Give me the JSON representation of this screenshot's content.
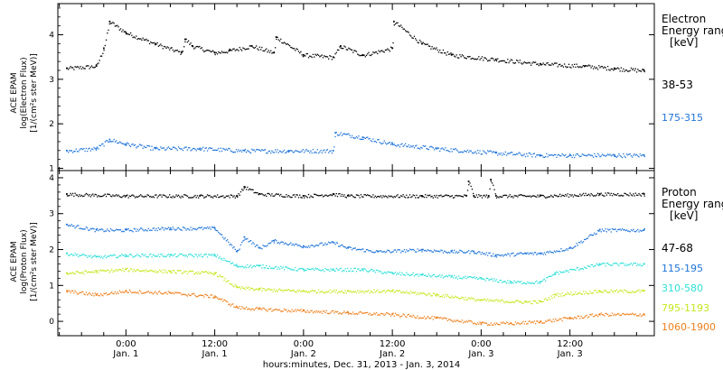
{
  "panels": [
    {
      "ylabel": [
        "ACE EPAM",
        "log(Electron Flux)",
        "[1/(cm²s ster MeV)]"
      ],
      "legend_title": [
        "Electron",
        "Energy range",
        "[keV]"
      ],
      "yticks": [
        "1",
        "2",
        "3",
        "4"
      ]
    },
    {
      "ylabel": [
        "ACE EPAM",
        "log(Proton Flux)",
        "[1/(cm²s ster MeV)]"
      ],
      "legend_title": [
        "Proton",
        "Energy range",
        "[keV]"
      ],
      "yticks": [
        "0",
        "1",
        "2",
        "3",
        "4"
      ]
    }
  ],
  "x_axis": {
    "tick_labels": [
      {
        "time": "0:00",
        "day": "Jan. 1"
      },
      {
        "time": "12:00",
        "day": "Jan. 1"
      },
      {
        "time": "0:00",
        "day": "Jan. 2"
      },
      {
        "time": "12:00",
        "day": "Jan. 2"
      },
      {
        "time": "0:00",
        "day": "Jan. 3"
      },
      {
        "time": "12:00",
        "day": "Jan. 3"
      }
    ],
    "label": "hours:minutes, Dec. 31, 2013 - Jan.  3, 2014"
  },
  "chart_data": [
    {
      "type": "scatter",
      "x_unit": "hours after 2014-01-01 00:00 UT",
      "xlim": [
        -9.2,
        71.4
      ],
      "ylim": [
        0.95,
        4.7
      ],
      "series": [
        {
          "name": "38-53",
          "color": "#000000",
          "x": [
            -8,
            -4,
            -3,
            -2.2,
            0,
            4,
            7.5,
            8,
            9,
            12,
            14,
            17,
            20,
            20.3,
            24,
            28,
            29,
            32,
            36,
            36.2,
            40,
            44,
            50,
            56,
            62,
            66,
            70
          ],
          "y": [
            3.25,
            3.3,
            3.7,
            4.3,
            4.05,
            3.8,
            3.6,
            3.9,
            3.75,
            3.6,
            3.65,
            3.75,
            3.6,
            3.95,
            3.55,
            3.5,
            3.75,
            3.55,
            3.7,
            4.3,
            3.8,
            3.55,
            3.45,
            3.35,
            3.3,
            3.25,
            3.2
          ]
        },
        {
          "name": "175-315",
          "color": "#1f74d9",
          "x": [
            -8,
            -4,
            -2.2,
            0,
            4,
            10,
            16,
            22,
            28,
            28.3,
            32,
            36,
            42,
            50,
            56,
            60,
            66,
            70
          ],
          "y": [
            1.4,
            1.45,
            1.65,
            1.55,
            1.45,
            1.45,
            1.4,
            1.4,
            1.4,
            1.8,
            1.7,
            1.55,
            1.45,
            1.35,
            1.3,
            1.3,
            1.3,
            1.3
          ]
        }
      ]
    },
    {
      "type": "scatter",
      "x_unit": "hours after 2014-01-01 00:00 UT",
      "xlim": [
        -9.2,
        71.4
      ],
      "ylim": [
        -0.4,
        4.2
      ],
      "series": [
        {
          "name": "47-68",
          "color": "#000000",
          "x": [
            -8,
            0,
            10,
            15,
            16,
            18,
            24,
            28,
            30,
            40,
            46,
            46.3,
            47,
            49,
            49.3,
            50,
            56,
            64,
            70
          ],
          "y": [
            3.55,
            3.5,
            3.5,
            3.5,
            3.75,
            3.55,
            3.5,
            3.55,
            3.5,
            3.5,
            3.5,
            3.9,
            3.5,
            3.5,
            3.95,
            3.5,
            3.5,
            3.55,
            3.55
          ]
        },
        {
          "name": "115-195",
          "color": "#1f74d9",
          "x": [
            -8,
            -4,
            0,
            6,
            12,
            15,
            16,
            18,
            20,
            24,
            28,
            30,
            34,
            40,
            44,
            47,
            50,
            54,
            56,
            60,
            64,
            70
          ],
          "y": [
            2.7,
            2.55,
            2.55,
            2.6,
            2.6,
            1.95,
            2.35,
            2.05,
            2.25,
            2.1,
            2.2,
            2.05,
            1.95,
            2.0,
            1.95,
            1.95,
            1.85,
            1.9,
            1.9,
            2.05,
            2.55,
            2.55
          ]
        },
        {
          "name": "310-580",
          "color": "#2ee0d8",
          "x": [
            -8,
            -4,
            0,
            6,
            12,
            15,
            18,
            24,
            28,
            32,
            36,
            40,
            44,
            48,
            52,
            56,
            58,
            64,
            70
          ],
          "y": [
            1.9,
            1.8,
            1.85,
            1.85,
            1.85,
            1.55,
            1.55,
            1.45,
            1.45,
            1.45,
            1.35,
            1.3,
            1.25,
            1.2,
            1.1,
            1.1,
            1.35,
            1.6,
            1.6
          ]
        },
        {
          "name": "795-1193",
          "color": "#c4e81c",
          "x": [
            -8,
            -4,
            0,
            6,
            12,
            15,
            18,
            24,
            30,
            36,
            42,
            48,
            54,
            56,
            58,
            64,
            70
          ],
          "y": [
            1.35,
            1.4,
            1.45,
            1.4,
            1.35,
            0.95,
            0.9,
            0.85,
            0.85,
            0.85,
            0.75,
            0.6,
            0.55,
            0.55,
            0.75,
            0.85,
            0.85
          ]
        },
        {
          "name": "1060-1900",
          "color": "#ef7f1a",
          "x": [
            -8,
            -4,
            0,
            6,
            12,
            15,
            18,
            24,
            30,
            36,
            42,
            48,
            52,
            56,
            60,
            64,
            70
          ],
          "y": [
            0.85,
            0.75,
            0.85,
            0.8,
            0.7,
            0.4,
            0.35,
            0.3,
            0.25,
            0.2,
            0.1,
            -0.05,
            -0.05,
            0.0,
            0.1,
            0.2,
            0.2
          ]
        }
      ]
    }
  ]
}
